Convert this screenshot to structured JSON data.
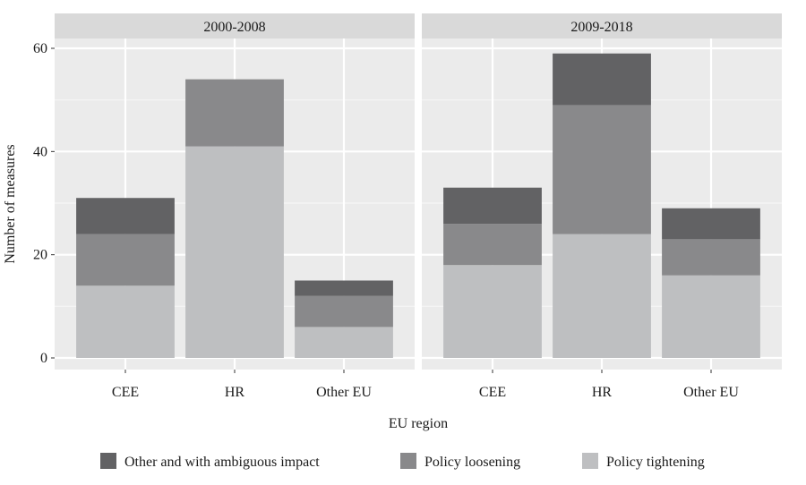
{
  "chart_data": {
    "type": "bar",
    "stacked": true,
    "facets": [
      "2000-2008",
      "2009-2018"
    ],
    "categories": [
      "CEE",
      "HR",
      "Other EU"
    ],
    "xlabel": "EU region",
    "ylabel": "Number of measures",
    "ylim": [
      0,
      60
    ],
    "yticks": [
      0,
      20,
      40,
      60
    ],
    "grid": true,
    "legend_position": "bottom",
    "series": [
      {
        "name": "Policy tightening",
        "color": "#bebfc1",
        "values": {
          "2000-2008": [
            14,
            41,
            6
          ],
          "2009-2018": [
            18,
            24,
            16
          ]
        }
      },
      {
        "name": "Policy loosening",
        "color": "#89898b",
        "values": {
          "2000-2008": [
            10,
            13,
            6
          ],
          "2009-2018": [
            8,
            25,
            7
          ]
        }
      },
      {
        "name": "Other and with ambiguous impact",
        "color": "#626264",
        "values": {
          "2000-2008": [
            7,
            0,
            3
          ],
          "2009-2018": [
            7,
            10,
            6
          ]
        }
      }
    ],
    "legend": [
      "Other and with ambiguous impact",
      "Policy loosening",
      "Policy tightening"
    ]
  }
}
